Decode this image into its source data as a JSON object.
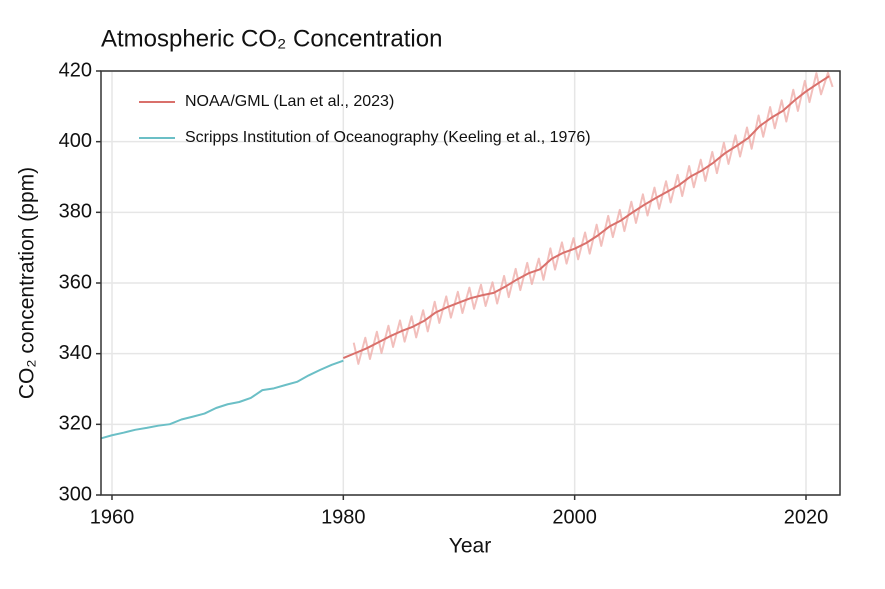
{
  "chart_data": {
    "type": "line",
    "title": "Atmospheric CO₂ Concentration",
    "x_label": "Year",
    "y_label": "CO₂ concentration (ppm)",
    "xlim": [
      1959.05,
      2022.94
    ],
    "ylim": [
      300,
      420
    ],
    "xticks": [
      1960,
      1980,
      2000,
      2020
    ],
    "yticks": [
      300,
      320,
      340,
      360,
      380,
      400,
      420
    ],
    "grid": true,
    "legend": "top-left",
    "series": [
      {
        "name": "NOAA/GML (Lan et al., 2023)",
        "color": "#d9706b",
        "seasonal_color": "#eeaaa6",
        "x": [
          1980,
          1981,
          1982,
          1983,
          1984,
          1985,
          1986,
          1987,
          1988,
          1989,
          1990,
          1991,
          1992,
          1993,
          1994,
          1995,
          1996,
          1997,
          1998,
          1999,
          2000,
          2001,
          2002,
          2003,
          2004,
          2005,
          2006,
          2007,
          2008,
          2009,
          2010,
          2011,
          2012,
          2013,
          2014,
          2015,
          2016,
          2017,
          2018,
          2019,
          2020,
          2021,
          2022
        ],
        "values": [
          338.76,
          340.12,
          341.48,
          343.15,
          344.87,
          346.35,
          347.61,
          349.31,
          351.69,
          353.2,
          354.45,
          355.7,
          356.54,
          357.21,
          358.96,
          360.97,
          362.74,
          363.88,
          366.84,
          368.54,
          369.71,
          371.32,
          373.45,
          375.98,
          377.7,
          379.98,
          382.09,
          384.02,
          385.83,
          387.64,
          390.1,
          391.85,
          394.06,
          396.74,
          398.81,
          401.01,
          404.41,
          406.76,
          408.72,
          411.65,
          414.21,
          416.41,
          418.53
        ],
        "seasonal_x": [
          1980.9,
          1981.3,
          1981.9,
          1982.3,
          1982.9,
          1983.3,
          1983.9,
          1984.3,
          1984.9,
          1985.3,
          1985.9,
          1986.3,
          1986.9,
          1987.3,
          1987.9,
          1988.3,
          1988.9,
          1989.3,
          1989.9,
          1990.3,
          1990.9,
          1991.3,
          1991.9,
          1992.3,
          1992.9,
          1993.3,
          1993.9,
          1994.3,
          1994.9,
          1995.3,
          1995.9,
          1996.3,
          1996.9,
          1997.3,
          1997.9,
          1998.3,
          1998.9,
          1999.3,
          1999.9,
          2000.3,
          2000.9,
          2001.3,
          2001.9,
          2002.3,
          2002.9,
          2003.3,
          2003.9,
          2004.3,
          2004.9,
          2005.3,
          2005.9,
          2006.3,
          2006.9,
          2007.3,
          2007.9,
          2008.3,
          2008.9,
          2009.3,
          2009.9,
          2010.3,
          2010.9,
          2011.3,
          2011.9,
          2012.3,
          2012.9,
          2013.3,
          2013.9,
          2014.3,
          2014.9,
          2015.3,
          2015.9,
          2016.3,
          2016.9,
          2017.3,
          2017.9,
          2018.3,
          2018.9,
          2019.3,
          2019.9,
          2020.3,
          2020.9,
          2021.3,
          2021.9,
          2022.3
        ],
        "seasonal_values": [
          343.1,
          337.1,
          344.5,
          338.5,
          346.2,
          340.2,
          347.9,
          341.9,
          349.4,
          343.4,
          350.6,
          344.6,
          352.3,
          346.3,
          354.7,
          348.7,
          356.2,
          350.2,
          357.5,
          351.5,
          358.7,
          352.7,
          359.5,
          353.5,
          360.2,
          354.2,
          362.0,
          356.0,
          364.0,
          358.0,
          365.7,
          359.7,
          366.9,
          360.9,
          369.8,
          363.8,
          371.5,
          365.5,
          372.7,
          366.7,
          374.3,
          368.3,
          376.5,
          370.5,
          379.0,
          373.0,
          380.7,
          374.7,
          383.0,
          377.0,
          385.1,
          379.1,
          387.0,
          381.0,
          388.8,
          382.8,
          390.6,
          384.6,
          393.1,
          387.1,
          394.9,
          388.9,
          397.1,
          391.1,
          399.7,
          393.7,
          401.8,
          395.8,
          404.0,
          398.0,
          407.4,
          401.4,
          409.8,
          403.8,
          411.7,
          405.7,
          414.7,
          408.7,
          417.2,
          411.2,
          419.4,
          413.4,
          419.5,
          415.5
        ]
      },
      {
        "name": "Scripps Institution of Oceanography (Keeling et al., 1976)",
        "color": "#6bbfc6",
        "x": [
          1959,
          1960,
          1961,
          1962,
          1963,
          1964,
          1965,
          1966,
          1967,
          1968,
          1969,
          1970,
          1971,
          1972,
          1973,
          1974,
          1975,
          1976,
          1977,
          1978,
          1979,
          1980
        ],
        "values": [
          315.98,
          316.91,
          317.64,
          318.45,
          318.99,
          319.62,
          320.04,
          321.37,
          322.18,
          323.05,
          324.62,
          325.68,
          326.32,
          327.46,
          329.68,
          330.19,
          331.13,
          332.03,
          333.84,
          335.41,
          336.84,
          338.0
        ]
      }
    ]
  }
}
